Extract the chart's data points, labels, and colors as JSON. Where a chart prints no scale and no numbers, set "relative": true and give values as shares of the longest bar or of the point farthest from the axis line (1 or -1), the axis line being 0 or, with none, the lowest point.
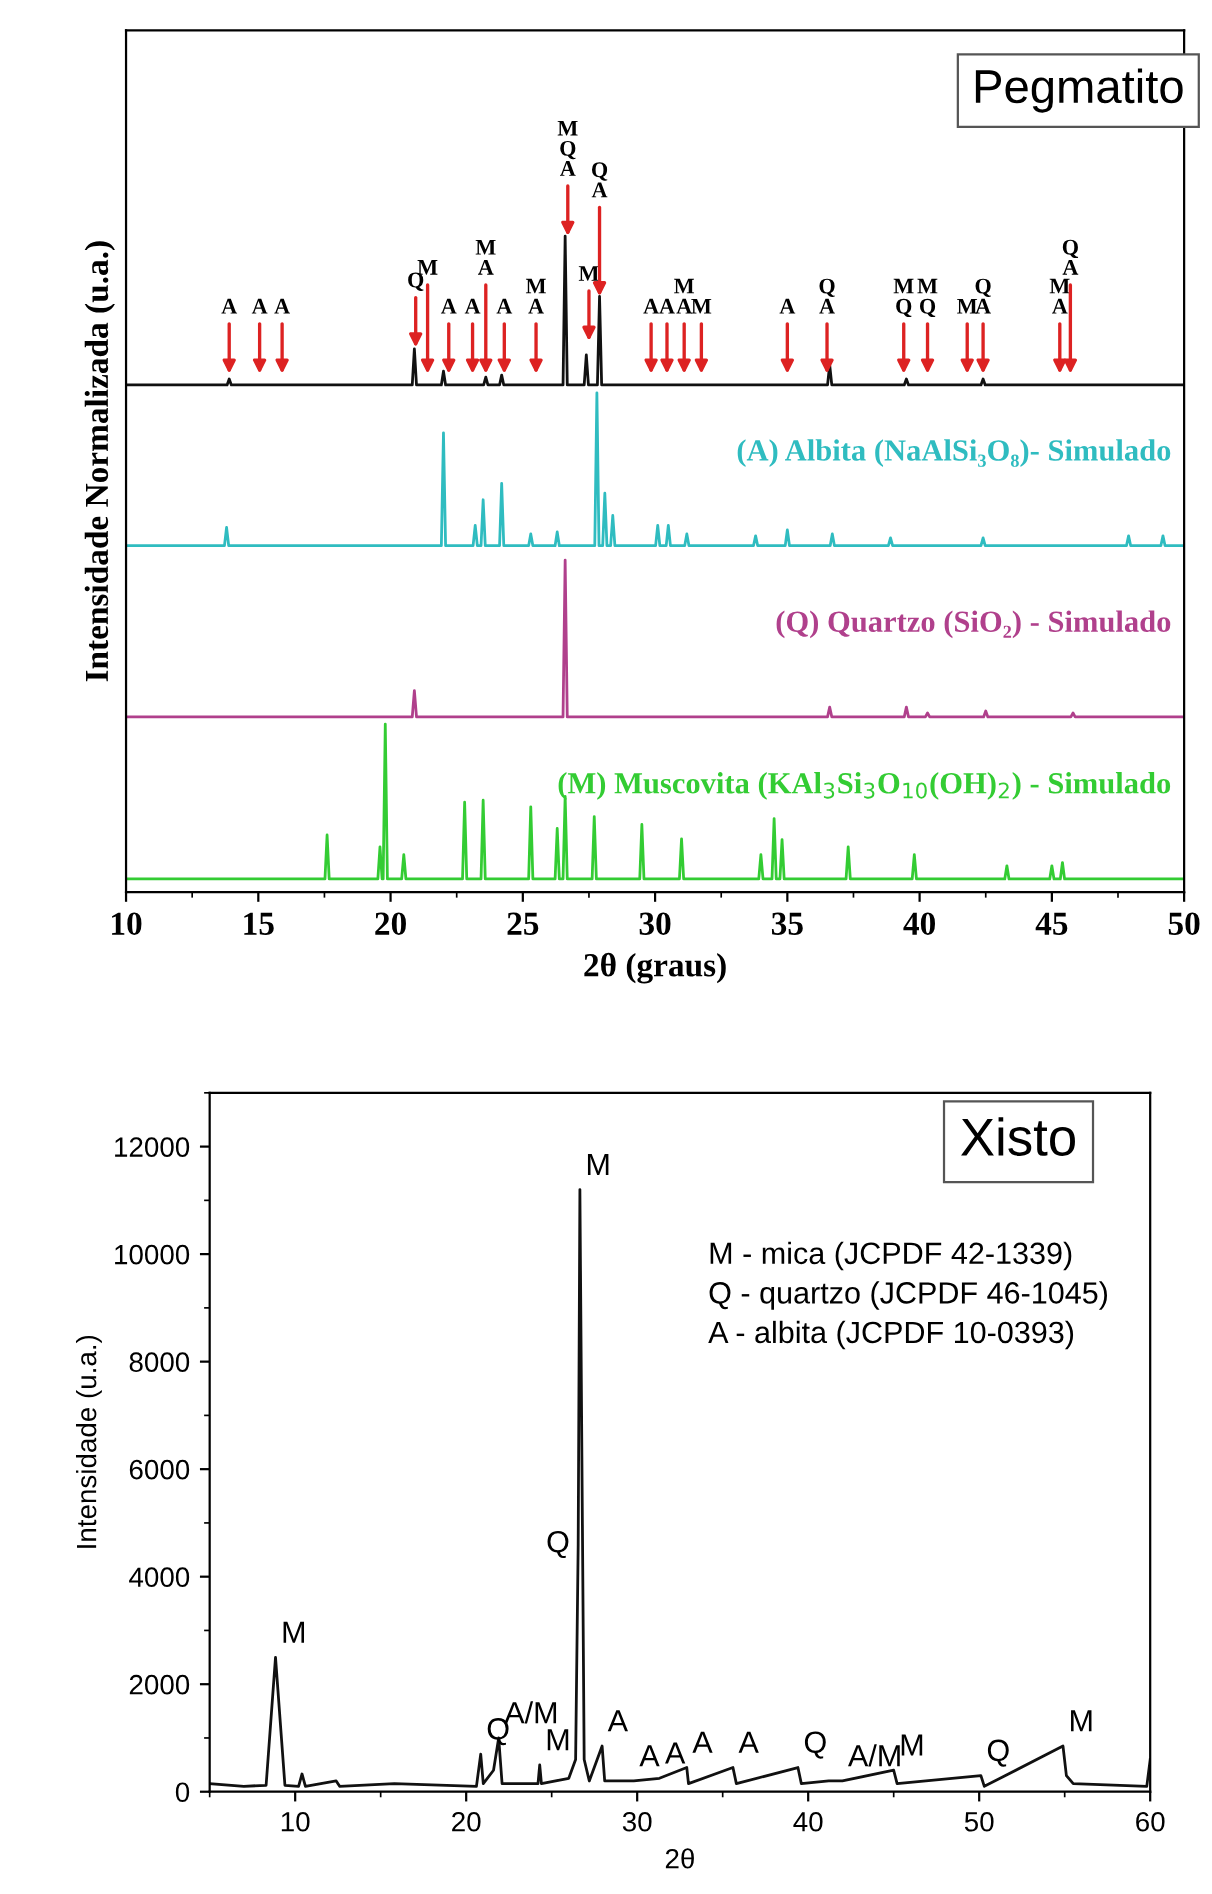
{
  "chart_data": [
    {
      "type": "line",
      "relative": true,
      "xlabel": "2θ (graus)",
      "ylabel": "Intensidade Normalizada (u.a.)",
      "xlim": [
        10,
        50
      ],
      "xticks": [
        10,
        15,
        20,
        25,
        30,
        35,
        40,
        45,
        50
      ],
      "tick_labels": "x",
      "grid": false,
      "legend": false,
      "marker": "none",
      "line_style": "solid",
      "series": [
        {
          "color": "#111111",
          "x": [
            10,
            13.82,
            13.9,
            13.98,
            20.82,
            20.9,
            20.98,
            21.92,
            22,
            22.08,
            23.52,
            23.6,
            23.68,
            24.12,
            24.2,
            24.28,
            26.52,
            26.6,
            26.68,
            27.32,
            27.4,
            27.48,
            27.82,
            27.9,
            27.98,
            36.52,
            36.6,
            36.68,
            39.42,
            39.5,
            39.58,
            42.32,
            42.4,
            42.48,
            50
          ],
          "values": [
            0.773,
            0.773,
            0.782,
            0.773,
            0.773,
            0.828,
            0.773,
            0.773,
            0.794,
            0.773,
            0.773,
            0.785,
            0.773,
            0.773,
            0.788,
            0.773,
            0.773,
            1,
            0.773,
            0.773,
            0.819,
            0.773,
            0.773,
            0.908,
            0.773,
            0.773,
            0.804,
            0.773,
            0.773,
            0.782,
            0.773,
            0.773,
            0.782,
            0.773,
            0.773
          ]
        },
        {
          "name": "(A) Albita (NaAlSi₃O₈)- Simulado",
          "color": "#2fbcc0",
          "x": [
            10,
            13.72,
            13.8,
            13.88,
            21.92,
            22,
            22.08,
            23.12,
            23.2,
            23.28,
            23.42,
            23.5,
            23.58,
            24.12,
            24.2,
            24.28,
            25.22,
            25.3,
            25.38,
            26.22,
            26.3,
            26.38,
            27.72,
            27.8,
            27.88,
            28.02,
            28.1,
            28.18,
            28.32,
            28.4,
            28.48,
            30.02,
            30.1,
            30.18,
            30.42,
            30.5,
            30.58,
            31.12,
            31.2,
            31.28,
            33.72,
            33.8,
            33.88,
            34.92,
            35,
            35.08,
            36.62,
            36.7,
            36.78,
            38.82,
            38.9,
            38.98,
            42.32,
            42.4,
            42.48,
            47.82,
            47.9,
            47.98,
            49.12,
            49.2,
            49.28,
            50
          ],
          "values": [
            0.528,
            0.528,
            0.556,
            0.528,
            0.528,
            0.7,
            0.528,
            0.528,
            0.559,
            0.528,
            0.528,
            0.598,
            0.528,
            0.528,
            0.623,
            0.528,
            0.528,
            0.546,
            0.528,
            0.528,
            0.549,
            0.528,
            0.528,
            0.761,
            0.528,
            0.528,
            0.608,
            0.528,
            0.528,
            0.574,
            0.528,
            0.528,
            0.559,
            0.528,
            0.528,
            0.559,
            0.528,
            0.528,
            0.546,
            0.528,
            0.528,
            0.543,
            0.528,
            0.528,
            0.552,
            0.528,
            0.528,
            0.546,
            0.528,
            0.528,
            0.54,
            0.528,
            0.528,
            0.54,
            0.528,
            0.528,
            0.543,
            0.528,
            0.528,
            0.543,
            0.528,
            0.528
          ]
        },
        {
          "name": "(Q) Quartzo (SiO₂) - Simulado",
          "color": "#b0408c",
          "x": [
            10,
            20.82,
            20.9,
            20.98,
            26.52,
            26.6,
            26.68,
            36.52,
            36.6,
            36.68,
            39.42,
            39.5,
            39.58,
            40.22,
            40.3,
            40.38,
            42.42,
            42.5,
            42.58,
            45.72,
            45.8,
            45.88,
            50
          ],
          "values": [
            0.267,
            0.267,
            0.307,
            0.267,
            0.267,
            0.506,
            0.267,
            0.267,
            0.282,
            0.267,
            0.267,
            0.282,
            0.267,
            0.267,
            0.273,
            0.267,
            0.267,
            0.276,
            0.267,
            0.267,
            0.273,
            0.267,
            0.267
          ]
        },
        {
          "name": "(M) Muscovita (KAl$_{3}$Si$_{3}$O$_{10}$(OH)$_{2}$) - Simulado",
          "color": "#33cc33",
          "x": [
            10,
            17.52,
            17.6,
            17.68,
            19.52,
            19.6,
            19.68,
            19.72,
            19.8,
            19.88,
            20.42,
            20.5,
            20.58,
            22.72,
            22.8,
            22.88,
            23.42,
            23.5,
            23.58,
            25.22,
            25.3,
            25.38,
            26.22,
            26.3,
            26.38,
            26.52,
            26.6,
            26.68,
            27.62,
            27.7,
            27.78,
            29.42,
            29.5,
            29.58,
            30.92,
            31,
            31.08,
            33.92,
            34,
            34.08,
            34.42,
            34.5,
            34.58,
            34.72,
            34.8,
            34.88,
            37.22,
            37.3,
            37.38,
            39.72,
            39.8,
            39.88,
            43.22,
            43.3,
            43.38,
            44.92,
            45,
            45.08,
            45.32,
            45.4,
            45.48,
            50
          ],
          "values": [
            0.02,
            0.02,
            0.087,
            0.02,
            0.02,
            0.069,
            0.02,
            0.02,
            0.256,
            0.02,
            0.02,
            0.057,
            0.02,
            0.02,
            0.137,
            0.02,
            0.02,
            0.14,
            0.02,
            0.02,
            0.13,
            0.02,
            0.02,
            0.097,
            0.02,
            0.02,
            0.146,
            0.02,
            0.02,
            0.115,
            0.02,
            0.02,
            0.103,
            0.02,
            0.02,
            0.081,
            0.02,
            0.02,
            0.057,
            0.02,
            0.02,
            0.112,
            0.02,
            0.02,
            0.08,
            0.02,
            0.02,
            0.069,
            0.02,
            0.02,
            0.057,
            0.02,
            0.02,
            0.04,
            0.02,
            0.02,
            0.04,
            0.02,
            0.02,
            0.045,
            0.02,
            0.02
          ]
        }
      ],
      "annotations": [
        "Pegmatito",
        {
          "text": "A",
          "x": 13.9,
          "y": 0.79
        },
        {
          "text": "A",
          "x": 15.05,
          "y": 0.79
        },
        {
          "text": "A",
          "x": 15.9,
          "y": 0.79
        },
        {
          "text": "Q",
          "x": 20.95,
          "y": 0.83
        },
        {
          "text": "M",
          "x": 21.4,
          "y": 0.79
        },
        {
          "text": "A",
          "x": 22.2,
          "y": 0.79
        },
        {
          "text": "A",
          "x": 23.1,
          "y": 0.79
        },
        {
          "text": "M\nA",
          "x": 23.6,
          "y": 0.79
        },
        {
          "text": "A",
          "x": 24.3,
          "y": 0.79
        },
        {
          "text": "M\nA",
          "x": 25.5,
          "y": 0.79
        },
        {
          "text": "M\nQ\nA",
          "x": 26.7,
          "y": 1.0
        },
        {
          "text": "M",
          "x": 27.5,
          "y": 0.84
        },
        {
          "text": "Q\nA",
          "x": 27.9,
          "y": 0.908
        },
        {
          "text": "A",
          "x": 29.85,
          "y": 0.79
        },
        {
          "text": "A",
          "x": 30.45,
          "y": 0.79
        },
        {
          "text": "M\nA",
          "x": 31.1,
          "y": 0.79
        },
        {
          "text": "M",
          "x": 31.75,
          "y": 0.79
        },
        {
          "text": "A",
          "x": 35.0,
          "y": 0.79
        },
        {
          "text": "Q\nA",
          "x": 36.5,
          "y": 0.79
        },
        {
          "text": "M\nQ",
          "x": 39.4,
          "y": 0.79
        },
        {
          "text": "M\nQ",
          "x": 40.3,
          "y": 0.79
        },
        {
          "text": "M",
          "x": 41.8,
          "y": 0.79
        },
        {
          "text": "Q\nA",
          "x": 42.4,
          "y": 0.79
        },
        {
          "text": "M\nA",
          "x": 45.3,
          "y": 0.79
        },
        {
          "text": "Q\nA",
          "x": 45.7,
          "y": 0.79
        }
      ]
    },
    {
      "type": "line",
      "xlabel": "2θ",
      "ylabel": "Intensidade (u.a.)",
      "xlim": [
        5,
        60
      ],
      "xticks": [
        10,
        20,
        30,
        40,
        50,
        60
      ],
      "ylim": [
        0,
        13000
      ],
      "yticks": [
        0,
        2000,
        4000,
        6000,
        8000,
        10000,
        12000
      ],
      "grid": false,
      "legend": false,
      "marker": "none",
      "line_style": "solid",
      "series": [
        {
          "color": "#111111",
          "x": [
            5,
            7,
            8.3,
            8.85,
            9.4,
            10.2,
            10.4,
            10.6,
            12.4,
            12.6,
            15.8,
            20.6,
            20.85,
            21.0,
            21.6,
            21.9,
            22.1,
            24.2,
            24.3,
            24.4,
            26.0,
            26.4,
            26.55,
            26.65,
            26.9,
            27.2,
            27.95,
            28.1,
            29.8,
            31.3,
            32.9,
            33.0,
            35.6,
            35.8,
            39.4,
            39.6,
            41.2,
            42.0,
            45.0,
            45.2,
            50.1,
            50.3,
            54.9,
            55.1,
            55.5,
            59.8,
            60
          ],
          "values": [
            150,
            100,
            120,
            2500,
            120,
            100,
            330,
            100,
            200,
            100,
            150,
            100,
            700,
            150,
            400,
            1000,
            150,
            150,
            500,
            150,
            250,
            600,
            4600,
            11200,
            600,
            200,
            850,
            200,
            200,
            250,
            450,
            150,
            450,
            150,
            450,
            150,
            200,
            200,
            400,
            150,
            300,
            100,
            850,
            300,
            150,
            100,
            600
          ]
        }
      ],
      "annotations": [
        "Xisto",
        "M - mica (JCPDF 42-1339)",
        "Q - quartzo (JCPDF 46-1045)",
        "A - albita (JCPDF 10-0393)",
        {
          "text": "M",
          "x": 8.85,
          "y": 2500
        },
        {
          "text": "Q",
          "x": 20.85,
          "y": 700
        },
        {
          "text": "A/M",
          "x": 21.9,
          "y": 1000
        },
        {
          "text": "M",
          "x": 24.3,
          "y": 500
        },
        {
          "text": "Q",
          "x": 26.55,
          "y": 4600
        },
        {
          "text": "M",
          "x": 26.65,
          "y": 11200
        },
        {
          "text": "A",
          "x": 27.95,
          "y": 850
        },
        {
          "text": "A",
          "x": 29.8,
          "y": 200
        },
        {
          "text": "A",
          "x": 31.3,
          "y": 250
        },
        {
          "text": "A",
          "x": 32.9,
          "y": 450
        },
        {
          "text": "A",
          "x": 35.6,
          "y": 450
        },
        {
          "text": "Q",
          "x": 39.4,
          "y": 450
        },
        {
          "text": "A/M",
          "x": 42.0,
          "y": 200
        },
        {
          "text": "M",
          "x": 45.0,
          "y": 400
        },
        {
          "text": "Q",
          "x": 50.1,
          "y": 300
        },
        {
          "text": "M",
          "x": 54.9,
          "y": 850
        }
      ]
    }
  ]
}
